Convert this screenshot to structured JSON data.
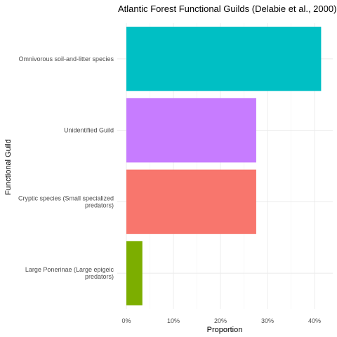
{
  "chart_data": {
    "type": "bar",
    "orientation": "horizontal",
    "title": "Atlantic Forest Functional Guilds (Delabie et al., 2000)",
    "xlabel": "Proportion",
    "ylabel": "Functional Guild",
    "xlim": [
      0,
      0.42
    ],
    "xticks": [
      0,
      0.1,
      0.2,
      0.3,
      0.4
    ],
    "xtick_labels": [
      "0%",
      "10%",
      "20%",
      "30%",
      "40%"
    ],
    "grid": true,
    "categories": [
      [
        "Omnivorous soil-and-litter species"
      ],
      [
        "Unidentified Guild"
      ],
      [
        "Cryptic species (Small specialized",
        "predators)"
      ],
      [
        "Large Ponerinae (Large epigeic",
        "predators)"
      ]
    ],
    "values": [
      0.414,
      0.276,
      0.276,
      0.034
    ],
    "colors": [
      "#00BFC4",
      "#C77CFF",
      "#F8766D",
      "#7CAE00"
    ]
  }
}
